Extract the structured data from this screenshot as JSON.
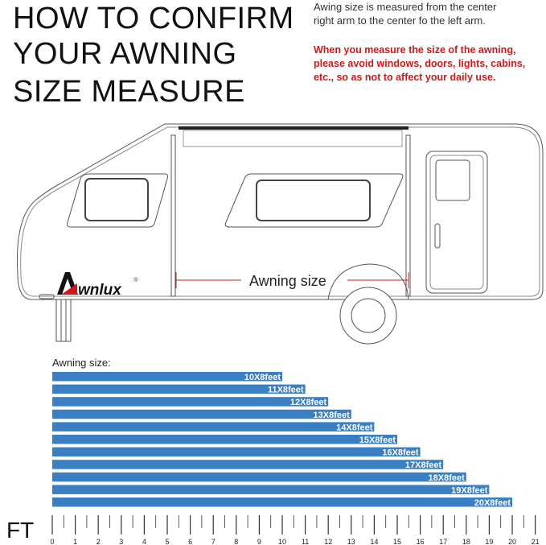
{
  "title": {
    "line1": "HOW TO CONFIRM",
    "line2": "YOUR AWNING",
    "line3": "SIZE MEASURE"
  },
  "note": {
    "line1": "Awing size is measured from the center",
    "line2": "right arm to the center fo the left arm."
  },
  "warning": "When you measure the size of the awning, please avoid windows, doors, lights, cabins, etc., so as not to affect your daily use.",
  "diagram": {
    "awning_label": "Awning size",
    "logo": "Awnlux",
    "logo_mark": "®"
  },
  "colors": {
    "bar": "#3a7fc4",
    "warning": "#d01818",
    "measure_line": "#c82020"
  },
  "chart_data": {
    "type": "bar",
    "orientation": "horizontal",
    "title": "Awning size:",
    "unit_label": "FT",
    "categories": [
      "10X8feet",
      "11X8feet",
      "12X8feet",
      "13X8feet",
      "14X8feet",
      "15X8feet",
      "16X8feet",
      "17X8feet",
      "18X8feet",
      "19X8feet",
      "20X8feet"
    ],
    "values": [
      10,
      11,
      12,
      13,
      14,
      15,
      16,
      17,
      18,
      19,
      20
    ],
    "xlim": [
      0,
      21
    ],
    "ticks": [
      "0",
      "1",
      "2",
      "3",
      "4",
      "5",
      "6",
      "7",
      "8",
      "9",
      "10",
      "11",
      "12",
      "13",
      "14",
      "15",
      "16",
      "17",
      "18",
      "19",
      "20",
      "21"
    ]
  }
}
